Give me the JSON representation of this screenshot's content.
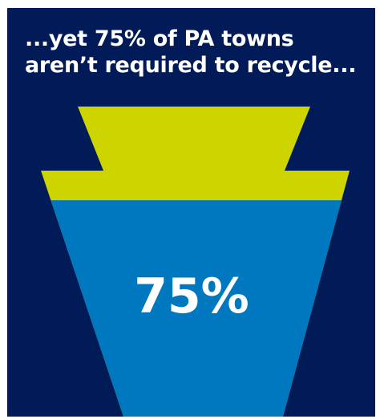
{
  "headline": {
    "line1": "...yet 75% of PA towns",
    "line2": "aren’t required to recycle..."
  },
  "chart_data": {
    "type": "area",
    "shape": "keystone",
    "title": "...yet 75% of PA towns aren’t required to recycle...",
    "value_percent": 75,
    "value_label": "75%",
    "segments": [
      {
        "value": 25,
        "color": "#cdd400"
      },
      {
        "value": 75,
        "color": "#0078bf"
      }
    ]
  },
  "colors": {
    "background": "#001b57",
    "accent_yellow": "#cdd400",
    "accent_blue": "#0078bf",
    "text": "#ffffff"
  }
}
